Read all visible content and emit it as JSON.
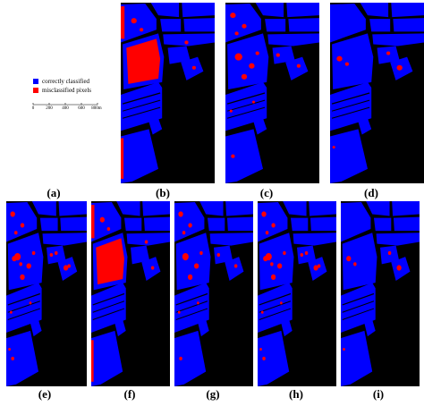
{
  "legend": {
    "items": [
      "correctly classified",
      "misclassified pixels"
    ]
  },
  "scale_bar": {
    "labels": [
      "0",
      "200",
      "400",
      "600",
      "800m"
    ]
  },
  "panels": [
    "(a)",
    "(b)",
    "(c)",
    "(d)",
    "(e)",
    "(f)",
    "(g)",
    "(h)",
    "(i)"
  ]
}
